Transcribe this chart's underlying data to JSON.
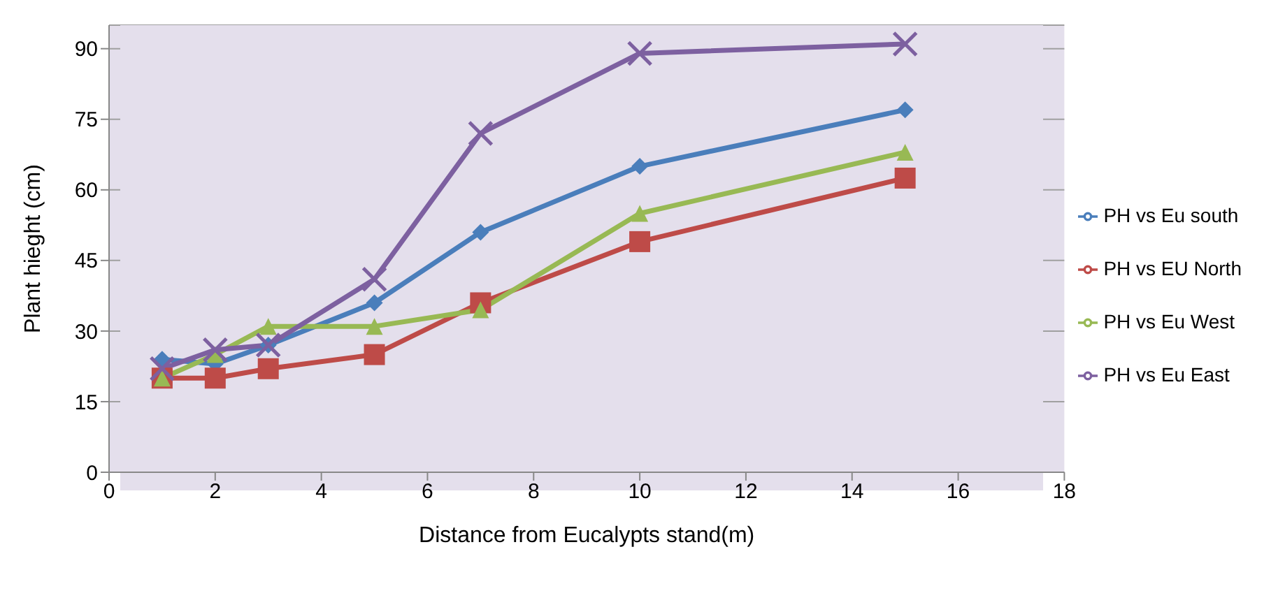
{
  "chart_data": {
    "type": "line",
    "xlabel": "Distance from Eucalypts stand(m)",
    "ylabel": "Plant hieght (cm)",
    "x": [
      1,
      2,
      3,
      5,
      7,
      10,
      15
    ],
    "series": [
      {
        "name": "PH vs Eu south",
        "color": "#4a7ebb",
        "marker": "diamond",
        "values": [
          24,
          23,
          27,
          36,
          51,
          65,
          77
        ]
      },
      {
        "name": "PH vs EU North",
        "color": "#be4b48",
        "marker": "square",
        "values": [
          20,
          20,
          22,
          25,
          36,
          49,
          62.5
        ]
      },
      {
        "name": "PH vs Eu West",
        "color": "#98b954",
        "marker": "triangle",
        "values": [
          20,
          25,
          31,
          31,
          34.5,
          55,
          68
        ]
      },
      {
        "name": "PH vs Eu East",
        "color": "#7d60a0",
        "marker": "cross",
        "values": [
          22,
          26,
          27,
          41,
          72,
          89,
          91
        ]
      }
    ],
    "xlim": [
      0,
      18
    ],
    "xticks": [
      0,
      2,
      4,
      6,
      8,
      10,
      12,
      14,
      16,
      18
    ],
    "ylim": [
      0,
      95
    ],
    "yticks": [
      0,
      15,
      30,
      45,
      60,
      75,
      90
    ],
    "grid": "y",
    "legend": "right"
  }
}
